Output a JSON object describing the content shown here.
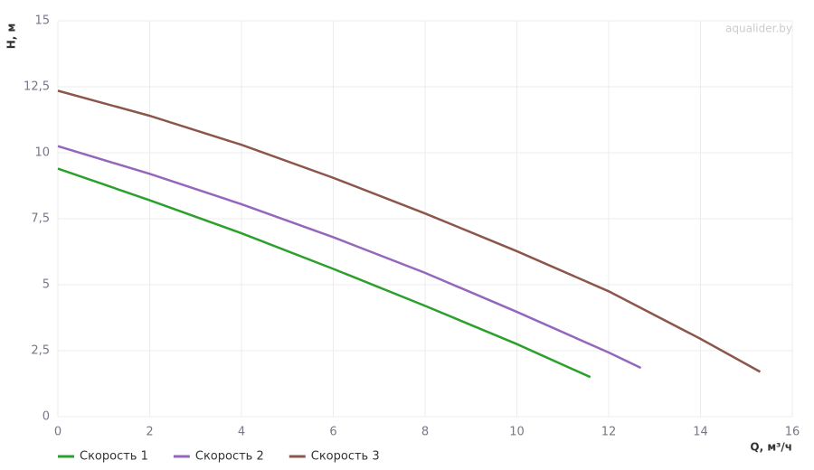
{
  "chart_data": {
    "type": "line",
    "watermark": "aqualider.by",
    "x_label": "Q, м³/ч",
    "y_label": "H, м",
    "xlim": [
      0,
      16
    ],
    "xticks": [
      0,
      2,
      4,
      6,
      8,
      10,
      12,
      14,
      16
    ],
    "ylim": [
      0,
      15
    ],
    "yticks": [
      0,
      {
        "value": 2.5,
        "label": "2,5"
      },
      5,
      {
        "value": 7.5,
        "label": "7,5"
      },
      10,
      {
        "value": 12.5,
        "label": "12,5"
      },
      15
    ],
    "grid": true,
    "legend": "bottom-left",
    "series": [
      {
        "name": "Скорость 1",
        "color": "#2ca02c",
        "x": [
          0,
          2,
          4,
          6,
          8,
          10,
          11.6
        ],
        "values": [
          9.4,
          8.2,
          6.95,
          5.6,
          4.2,
          2.75,
          1.5
        ]
      },
      {
        "name": "Скорость 2",
        "color": "#9467bd",
        "x": [
          0,
          2,
          4,
          6,
          8,
          10,
          12,
          12.7
        ],
        "values": [
          10.25,
          9.2,
          8.05,
          6.8,
          5.45,
          3.97,
          2.43,
          1.85
        ]
      },
      {
        "name": "Скорость 3",
        "color": "#8c564b",
        "x": [
          0,
          2,
          4,
          6,
          8,
          10,
          12,
          14,
          15.3
        ],
        "values": [
          12.35,
          11.4,
          10.3,
          9.05,
          7.7,
          6.27,
          4.75,
          2.95,
          1.7
        ]
      }
    ]
  }
}
